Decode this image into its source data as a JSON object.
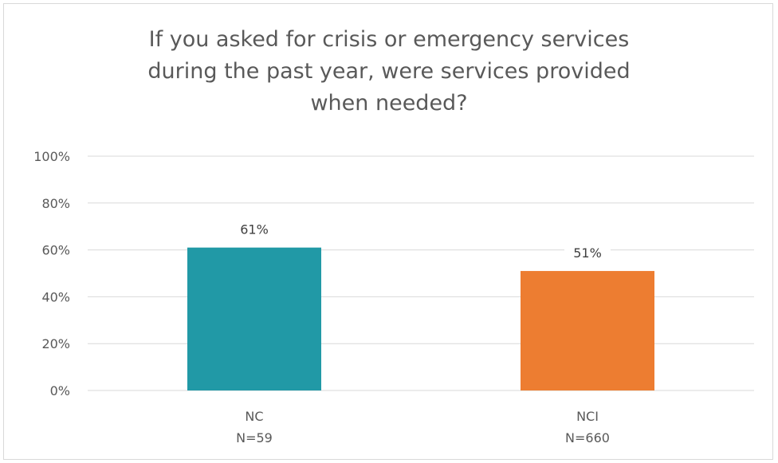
{
  "chart_data": {
    "type": "bar",
    "title_lines": [
      "If you asked for crisis or emergency services",
      "during the past year, were services provided",
      "when needed?"
    ],
    "categories": [
      {
        "label": "NC",
        "sublabel": "N=59"
      },
      {
        "label": "NCI",
        "sublabel": "N=660"
      }
    ],
    "values": [
      61,
      51
    ],
    "data_labels": [
      "61%",
      "51%"
    ],
    "colors": [
      "#2199a6",
      "#ed7d31"
    ],
    "ylim": [
      0,
      100
    ],
    "yticks": [
      0,
      20,
      40,
      60,
      80,
      100
    ],
    "ytick_labels": [
      "0%",
      "20%",
      "40%",
      "60%",
      "80%",
      "100%"
    ],
    "grid": true,
    "legend": "none"
  }
}
